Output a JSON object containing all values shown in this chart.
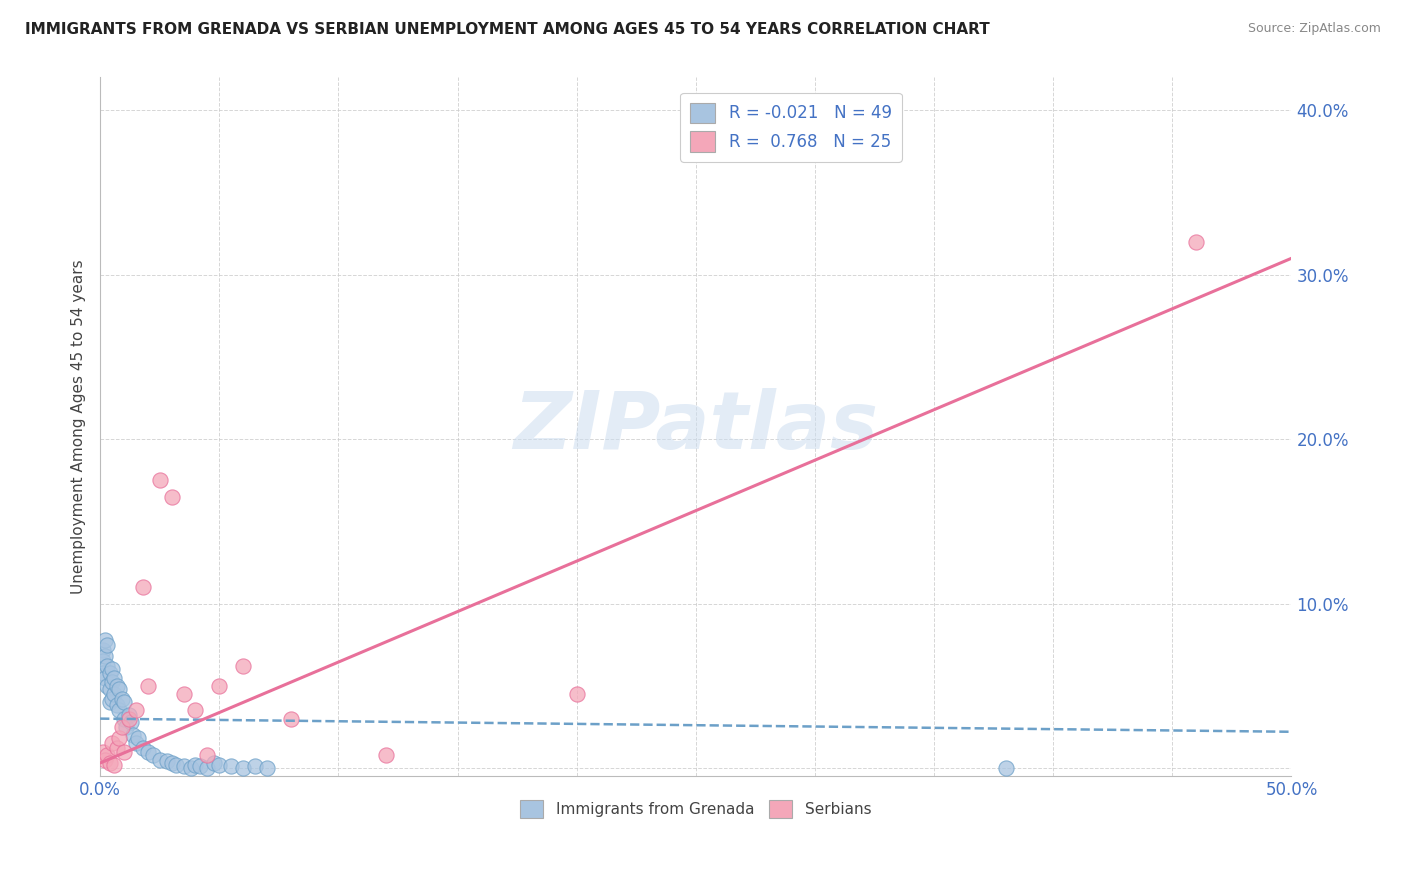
{
  "title": "IMMIGRANTS FROM GRENADA VS SERBIAN UNEMPLOYMENT AMONG AGES 45 TO 54 YEARS CORRELATION CHART",
  "source": "Source: ZipAtlas.com",
  "ylabel": "Unemployment Among Ages 45 to 54 years",
  "xlim": [
    0.0,
    0.5
  ],
  "ylim": [
    -0.005,
    0.42
  ],
  "xticks": [
    0.0,
    0.05,
    0.1,
    0.15,
    0.2,
    0.25,
    0.3,
    0.35,
    0.4,
    0.45,
    0.5
  ],
  "yticks": [
    0.0,
    0.1,
    0.2,
    0.3,
    0.4
  ],
  "legend_R1": "-0.021",
  "legend_N1": "49",
  "legend_R2": "0.768",
  "legend_N2": "25",
  "color_blue": "#a8c4e0",
  "color_pink": "#f4a7b9",
  "line_blue": "#6ca0c8",
  "line_pink": "#e8709a",
  "watermark": "ZIPatlas",
  "blue_scatter_x": [
    0.001,
    0.001,
    0.001,
    0.002,
    0.002,
    0.002,
    0.003,
    0.003,
    0.003,
    0.004,
    0.004,
    0.004,
    0.005,
    0.005,
    0.005,
    0.006,
    0.006,
    0.007,
    0.007,
    0.008,
    0.008,
    0.009,
    0.01,
    0.01,
    0.011,
    0.012,
    0.013,
    0.014,
    0.015,
    0.016,
    0.018,
    0.02,
    0.022,
    0.025,
    0.028,
    0.03,
    0.032,
    0.035,
    0.038,
    0.04,
    0.042,
    0.045,
    0.048,
    0.05,
    0.055,
    0.06,
    0.065,
    0.07,
    0.38
  ],
  "blue_scatter_y": [
    0.072,
    0.065,
    0.058,
    0.078,
    0.068,
    0.055,
    0.075,
    0.062,
    0.05,
    0.058,
    0.048,
    0.04,
    0.06,
    0.052,
    0.042,
    0.055,
    0.045,
    0.05,
    0.038,
    0.048,
    0.035,
    0.042,
    0.04,
    0.03,
    0.025,
    0.032,
    0.028,
    0.02,
    0.015,
    0.018,
    0.012,
    0.01,
    0.008,
    0.005,
    0.004,
    0.003,
    0.002,
    0.001,
    0.0,
    0.002,
    0.001,
    0.0,
    0.003,
    0.002,
    0.001,
    0.0,
    0.001,
    0.0,
    0.0
  ],
  "pink_scatter_x": [
    0.001,
    0.002,
    0.003,
    0.004,
    0.005,
    0.006,
    0.007,
    0.008,
    0.009,
    0.01,
    0.012,
    0.015,
    0.018,
    0.02,
    0.025,
    0.03,
    0.035,
    0.04,
    0.045,
    0.05,
    0.06,
    0.08,
    0.12,
    0.2,
    0.46
  ],
  "pink_scatter_y": [
    0.01,
    0.005,
    0.008,
    0.003,
    0.015,
    0.002,
    0.012,
    0.018,
    0.025,
    0.01,
    0.03,
    0.035,
    0.11,
    0.05,
    0.175,
    0.165,
    0.045,
    0.035,
    0.008,
    0.05,
    0.062,
    0.03,
    0.008,
    0.045,
    0.32
  ],
  "blue_trend_x": [
    0.0,
    0.5
  ],
  "blue_trend_y": [
    0.03,
    0.022
  ],
  "pink_trend_x": [
    0.0,
    0.5
  ],
  "pink_trend_y": [
    0.003,
    0.31
  ]
}
